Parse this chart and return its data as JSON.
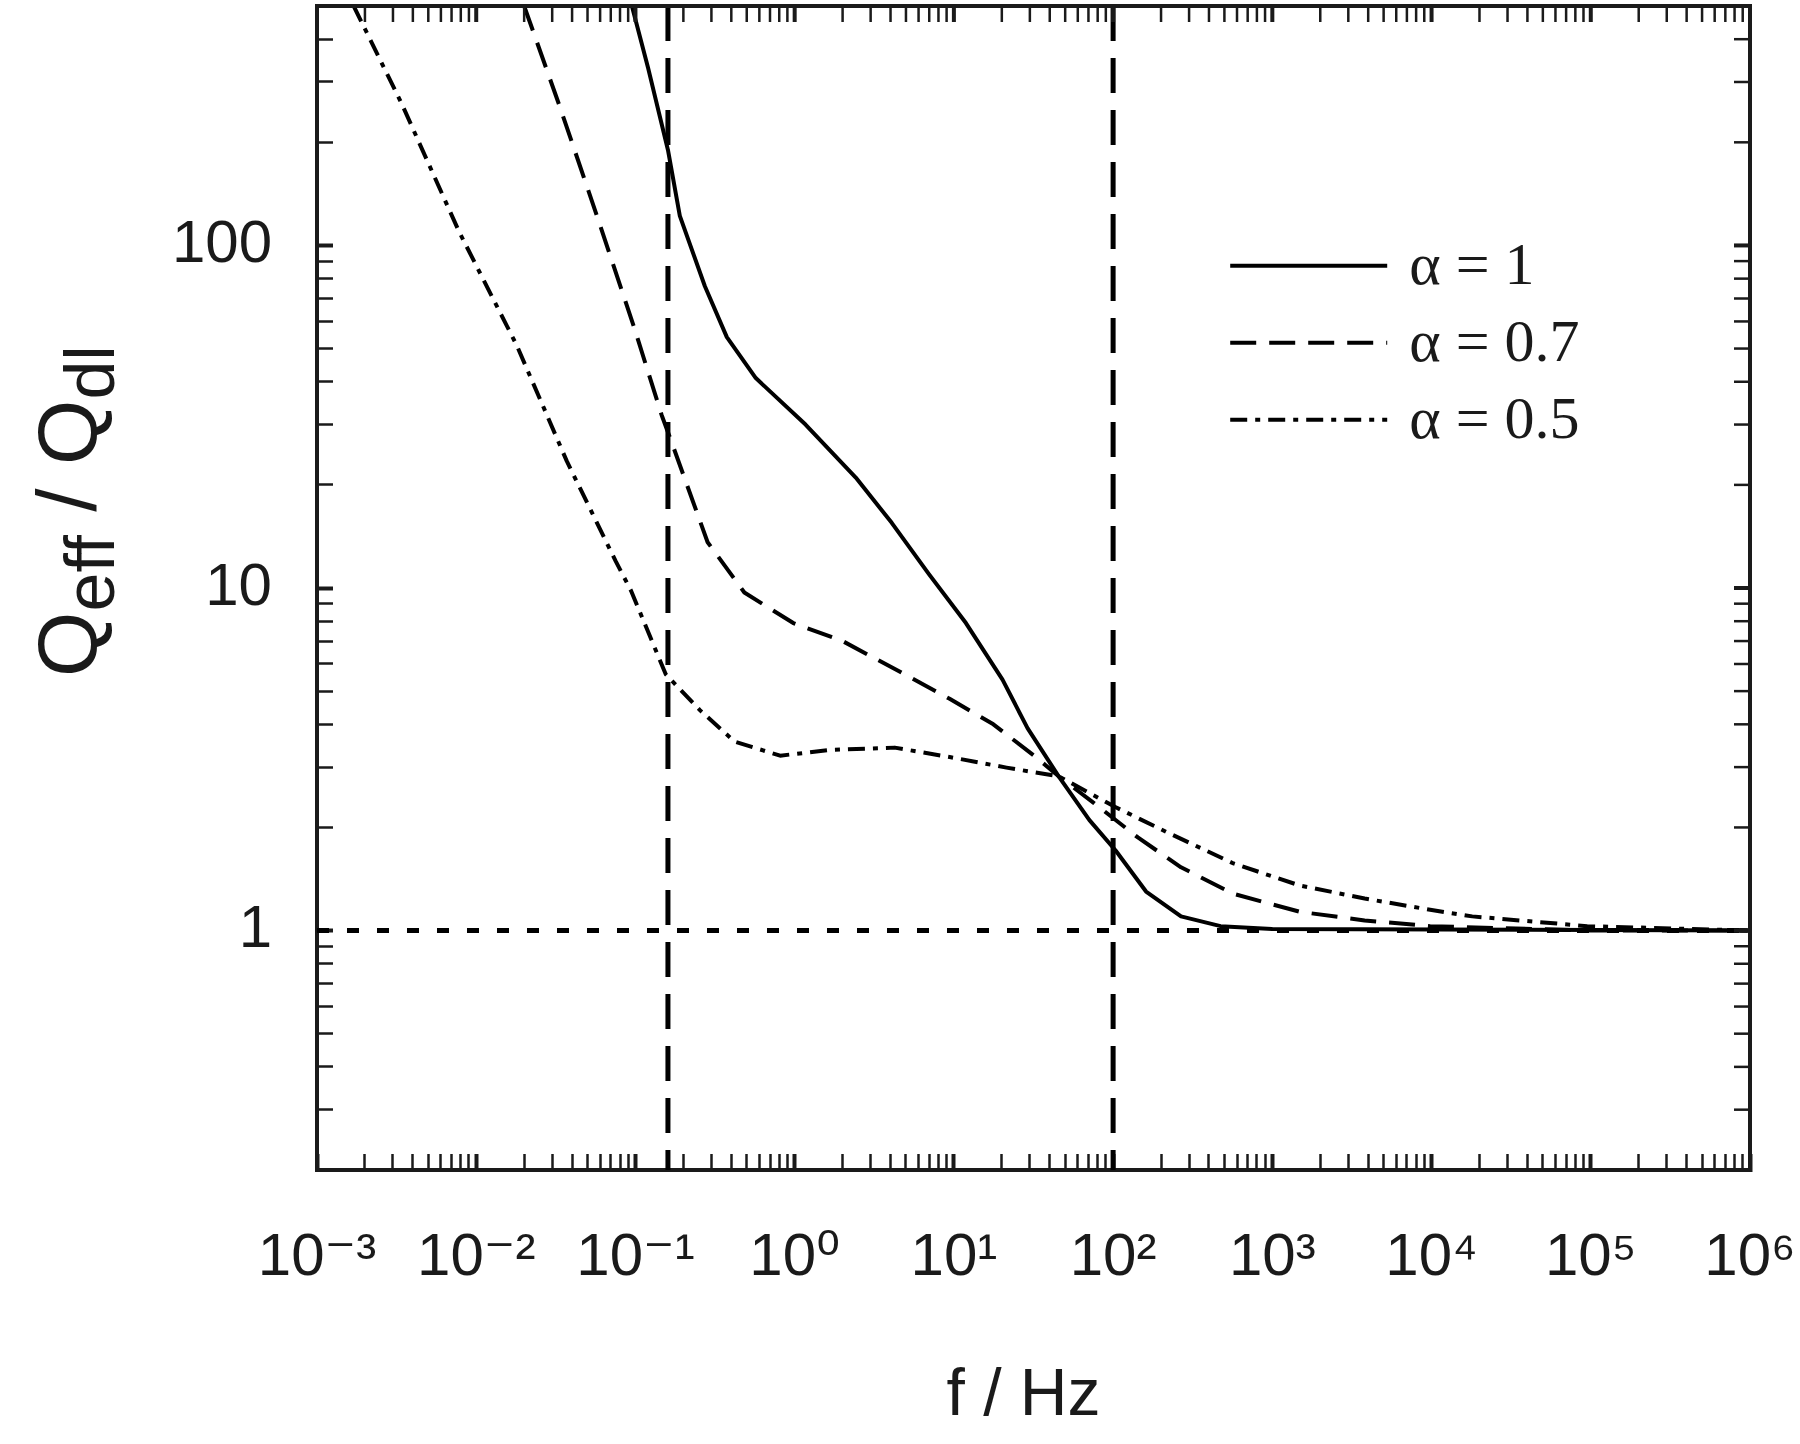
{
  "chart_data": {
    "type": "line",
    "xlabel": "f / Hz",
    "ylabel": "Q$_{eff}$ / Q$_{dl}$",
    "log": "xy",
    "grid": false,
    "legend": "top right",
    "marker": "none",
    "xlim": [
      0.001,
      1000000
    ],
    "ylim": [
      0.2,
      500
    ],
    "xticks": [
      {
        "value": 0.001,
        "label": "10⁻³"
      },
      {
        "value": 0.002,
        "label": null
      },
      {
        "value": 0.003,
        "label": null
      },
      {
        "value": 0.004,
        "label": null
      },
      {
        "value": 0.005,
        "label": null
      },
      {
        "value": 0.006,
        "label": null
      },
      {
        "value": 0.007,
        "label": null
      },
      {
        "value": 0.008,
        "label": null
      },
      {
        "value": 0.009,
        "label": null
      },
      {
        "value": 0.01,
        "label": "10⁻²"
      },
      {
        "value": 0.02,
        "label": null
      },
      {
        "value": 0.03,
        "label": null
      },
      {
        "value": 0.04,
        "label": null
      },
      {
        "value": 0.05,
        "label": null
      },
      {
        "value": 0.06,
        "label": null
      },
      {
        "value": 0.07,
        "label": null
      },
      {
        "value": 0.08,
        "label": null
      },
      {
        "value": 0.09,
        "label": null
      },
      {
        "value": 0.1,
        "label": "10⁻¹"
      },
      {
        "value": 0.2,
        "label": null
      },
      {
        "value": 0.3,
        "label": null
      },
      {
        "value": 0.4,
        "label": null
      },
      {
        "value": 0.5,
        "label": null
      },
      {
        "value": 0.6,
        "label": null
      },
      {
        "value": 0.7,
        "label": null
      },
      {
        "value": 0.8,
        "label": null
      },
      {
        "value": 0.9,
        "label": null
      },
      {
        "value": 1,
        "label": "10⁰"
      },
      {
        "value": 2,
        "label": null
      },
      {
        "value": 3,
        "label": null
      },
      {
        "value": 4,
        "label": null
      },
      {
        "value": 5,
        "label": null
      },
      {
        "value": 6,
        "label": null
      },
      {
        "value": 7,
        "label": null
      },
      {
        "value": 8,
        "label": null
      },
      {
        "value": 9,
        "label": null
      },
      {
        "value": 10,
        "label": "10¹"
      },
      {
        "value": 20,
        "label": null
      },
      {
        "value": 30,
        "label": null
      },
      {
        "value": 40,
        "label": null
      },
      {
        "value": 50,
        "label": null
      },
      {
        "value": 60,
        "label": null
      },
      {
        "value": 70,
        "label": null
      },
      {
        "value": 80,
        "label": null
      },
      {
        "value": 90,
        "label": null
      },
      {
        "value": 100,
        "label": "10²"
      },
      {
        "value": 200,
        "label": null
      },
      {
        "value": 300,
        "label": null
      },
      {
        "value": 400,
        "label": null
      },
      {
        "value": 500,
        "label": null
      },
      {
        "value": 600,
        "label": null
      },
      {
        "value": 700,
        "label": null
      },
      {
        "value": 800,
        "label": null
      },
      {
        "value": 900,
        "label": null
      },
      {
        "value": 1000,
        "label": "10³"
      },
      {
        "value": 2000,
        "label": null
      },
      {
        "value": 3000,
        "label": null
      },
      {
        "value": 4000,
        "label": null
      },
      {
        "value": 5000,
        "label": null
      },
      {
        "value": 6000,
        "label": null
      },
      {
        "value": 7000,
        "label": null
      },
      {
        "value": 8000,
        "label": null
      },
      {
        "value": 9000,
        "label": null
      },
      {
        "value": 10000,
        "label": "10⁴"
      },
      {
        "value": 20000,
        "label": null
      },
      {
        "value": 30000,
        "label": null
      },
      {
        "value": 40000,
        "label": null
      },
      {
        "value": 50000,
        "label": null
      },
      {
        "value": 60000,
        "label": null
      },
      {
        "value": 70000,
        "label": null
      },
      {
        "value": 80000,
        "label": null
      },
      {
        "value": 90000,
        "label": null
      },
      {
        "value": 100000,
        "label": "10⁵"
      },
      {
        "value": 200000,
        "label": null
      },
      {
        "value": 300000,
        "label": null
      },
      {
        "value": 400000,
        "label": null
      },
      {
        "value": 500000,
        "label": null
      },
      {
        "value": 600000,
        "label": null
      },
      {
        "value": 700000,
        "label": null
      },
      {
        "value": 800000,
        "label": null
      },
      {
        "value": 900000,
        "label": null
      },
      {
        "value": 1000000,
        "label": "10⁶"
      }
    ],
    "yticks": [
      {
        "value": 0.3,
        "label": null
      },
      {
        "value": 0.4,
        "label": null
      },
      {
        "value": 0.5,
        "label": null
      },
      {
        "value": 0.6,
        "label": null
      },
      {
        "value": 0.7,
        "label": null
      },
      {
        "value": 0.8,
        "label": null
      },
      {
        "value": 0.9,
        "label": null
      },
      1,
      {
        "value": 2,
        "label": null
      },
      {
        "value": 3,
        "label": null
      },
      {
        "value": 4,
        "label": null
      },
      {
        "value": 5,
        "label": null
      },
      {
        "value": 6,
        "label": null
      },
      {
        "value": 7,
        "label": null
      },
      {
        "value": 8,
        "label": null
      },
      {
        "value": 9,
        "label": null
      },
      10,
      {
        "value": 20,
        "label": null
      },
      {
        "value": 30,
        "label": null
      },
      {
        "value": 40,
        "label": null
      },
      {
        "value": 50,
        "label": null
      },
      {
        "value": 60,
        "label": null
      },
      {
        "value": 70,
        "label": null
      },
      {
        "value": 80,
        "label": null
      },
      {
        "value": 90,
        "label": null
      },
      100,
      {
        "value": 200,
        "label": null
      },
      {
        "value": 300,
        "label": null
      },
      {
        "value": 400,
        "label": null
      }
    ],
    "series": [
      {
        "name": "α = 1",
        "color": "#000000",
        "line_style": "solid",
        "x": [
          0.095,
          0.12,
          0.16,
          0.19,
          0.273,
          0.375,
          0.57,
          1.17,
          2.42,
          4.07,
          6.95,
          11.9,
          20.2,
          29,
          45.5,
          71,
          104,
          161,
          267,
          473,
          1000,
          1000000
        ],
        "values": [
          500,
          330,
          190,
          122,
          76,
          54,
          41,
          30,
          21,
          15.5,
          11,
          7.9,
          5.4,
          3.9,
          2.82,
          2.1,
          1.71,
          1.3,
          1.1,
          1.03,
          1.01,
          1
        ]
      },
      {
        "name": "α = 0.7",
        "color": "#000000",
        "line_style": "dashed",
        "x": [
          0.02,
          0.0335,
          0.0573,
          0.0977,
          0.146,
          0.167,
          0.284,
          0.483,
          0.98,
          2,
          4.9,
          9.4,
          17.7,
          33,
          45.5,
          75.5,
          143,
          267,
          570,
          1480,
          3800,
          9800,
          100000,
          1000000
        ],
        "values": [
          500,
          254,
          122,
          58,
          32,
          27,
          13.6,
          9.7,
          7.9,
          7,
          5.6,
          4.75,
          4,
          3.2,
          2.82,
          2.36,
          1.87,
          1.53,
          1.28,
          1.135,
          1.07,
          1.03,
          1,
          1
        ]
      },
      {
        "name": "α = 0.5",
        "color": "#000000",
        "line_style": "dashdot",
        "x": [
          0.0017,
          0.00342,
          0.00778,
          0.018,
          0.037,
          0.075,
          0.094,
          0.155,
          0.254,
          0.42,
          0.81,
          1.71,
          4.25,
          9.4,
          21.4,
          45.5,
          104,
          221,
          570,
          1480,
          3800,
          9800,
          18000,
          95000,
          1000000
        ],
        "values": [
          500,
          258,
          110,
          51,
          23.5,
          12,
          9.8,
          5.6,
          4.4,
          3.56,
          3.24,
          3.37,
          3.42,
          3.21,
          2.99,
          2.82,
          2.29,
          1.93,
          1.57,
          1.355,
          1.24,
          1.15,
          1.1,
          1.03,
          1
        ]
      }
    ],
    "ref_lines": [
      {
        "axis": "x",
        "value": 0.16,
        "line_style": "dashed",
        "color": "#000000"
      },
      {
        "axis": "x",
        "value": 100,
        "line_style": "dashed",
        "color": "#000000"
      },
      {
        "axis": "y",
        "value": 1,
        "line_style": "dotted",
        "color": "#000000"
      }
    ]
  }
}
